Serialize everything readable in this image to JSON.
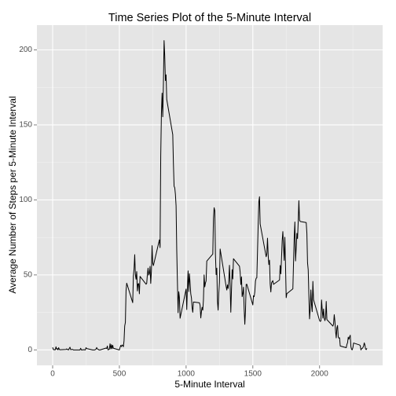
{
  "chart_data": {
    "type": "line",
    "title": "Time Series Plot of the 5-Minute Interval",
    "x_label": "5-Minute Interval",
    "y_label": "Average Number of Steps per 5-Minute Interval",
    "color": "#000000",
    "grid": true,
    "xlim": [
      -117.75,
      2472.75
    ],
    "ylim": [
      -10.3,
      216.5
    ],
    "xticks": [
      0,
      500,
      1000,
      1500,
      2000
    ],
    "yticks": [
      0,
      50,
      100,
      150,
      200
    ],
    "xminor": [
      250,
      750,
      1250,
      1750,
      2250
    ],
    "yminor": [
      25,
      75,
      125,
      175
    ],
    "x": [
      0,
      5,
      10,
      15,
      20,
      25,
      30,
      35,
      40,
      45,
      50,
      55,
      100,
      105,
      110,
      115,
      120,
      125,
      130,
      135,
      140,
      145,
      150,
      155,
      200,
      205,
      210,
      215,
      220,
      225,
      230,
      235,
      240,
      245,
      250,
      255,
      300,
      305,
      310,
      315,
      320,
      325,
      330,
      335,
      340,
      345,
      350,
      355,
      400,
      405,
      410,
      415,
      420,
      425,
      430,
      435,
      440,
      445,
      450,
      455,
      500,
      505,
      510,
      515,
      520,
      525,
      530,
      535,
      540,
      545,
      550,
      555,
      600,
      605,
      610,
      615,
      620,
      625,
      630,
      635,
      640,
      645,
      650,
      655,
      700,
      705,
      710,
      715,
      720,
      725,
      730,
      735,
      740,
      745,
      750,
      755,
      800,
      805,
      810,
      815,
      820,
      825,
      830,
      835,
      840,
      845,
      850,
      855,
      900,
      905,
      910,
      915,
      920,
      925,
      930,
      935,
      940,
      945,
      950,
      955,
      1000,
      1005,
      1010,
      1015,
      1020,
      1025,
      1030,
      1035,
      1040,
      1045,
      1050,
      1055,
      1100,
      1105,
      1110,
      1115,
      1120,
      1125,
      1130,
      1135,
      1140,
      1145,
      1150,
      1155,
      1200,
      1205,
      1210,
      1215,
      1220,
      1225,
      1230,
      1235,
      1240,
      1245,
      1250,
      1255,
      1300,
      1305,
      1310,
      1315,
      1320,
      1325,
      1330,
      1335,
      1340,
      1345,
      1350,
      1355,
      1400,
      1405,
      1410,
      1415,
      1420,
      1425,
      1430,
      1435,
      1440,
      1445,
      1450,
      1455,
      1500,
      1505,
      1510,
      1515,
      1520,
      1525,
      1530,
      1535,
      1540,
      1545,
      1550,
      1555,
      1600,
      1605,
      1610,
      1615,
      1620,
      1625,
      1630,
      1635,
      1640,
      1645,
      1650,
      1655,
      1700,
      1705,
      1710,
      1715,
      1720,
      1725,
      1730,
      1735,
      1740,
      1745,
      1750,
      1755,
      1800,
      1805,
      1810,
      1815,
      1820,
      1825,
      1830,
      1835,
      1840,
      1845,
      1850,
      1855,
      1900,
      1905,
      1910,
      1915,
      1920,
      1925,
      1930,
      1935,
      1940,
      1945,
      1950,
      1955,
      2000,
      2005,
      2010,
      2015,
      2020,
      2025,
      2030,
      2035,
      2040,
      2045,
      2050,
      2055,
      2100,
      2105,
      2110,
      2115,
      2120,
      2125,
      2130,
      2135,
      2140,
      2145,
      2150,
      2155,
      2200,
      2205,
      2210,
      2215,
      2220,
      2225,
      2230,
      2235,
      2240,
      2245,
      2250,
      2255,
      2300,
      2305,
      2310,
      2315,
      2320,
      2325,
      2330,
      2335,
      2340,
      2345,
      2350,
      2355
    ],
    "values": [
      1.7,
      0.3,
      0.1,
      0.2,
      0.1,
      2.1,
      0.5,
      0.9,
      0,
      1.5,
      0.3,
      0.1,
      0.3,
      0.7,
      0.2,
      0.3,
      0,
      1.1,
      1.8,
      0.2,
      0.2,
      0.4,
      0.3,
      0,
      0,
      0,
      1.1,
      0,
      0,
      0.1,
      0,
      0.2,
      0,
      0,
      1.5,
      0.9,
      0,
      0,
      0,
      0,
      0.2,
      0.6,
      1.6,
      0.6,
      0.5,
      0.1,
      0,
      0,
      1.2,
      0.9,
      2.6,
      0,
      0.3,
      0.4,
      4.1,
      0.7,
      3.5,
      0.8,
      3.1,
      1.1,
      0,
      1.6,
      3.0,
      2.2,
      3.3,
      3.0,
      2.1,
      6.1,
      16.0,
      18.3,
      39.5,
      44.5,
      31.5,
      49.3,
      53.8,
      63.5,
      50.0,
      47.1,
      52.2,
      39.3,
      44.0,
      44.2,
      37.4,
      49.0,
      43.8,
      44.4,
      50.5,
      54.5,
      49.9,
      51.0,
      55.7,
      44.3,
      52.3,
      69.5,
      57.8,
      56.2,
      73.4,
      68.2,
      129.4,
      157.5,
      171.2,
      155.4,
      177.3,
      206.2,
      195.9,
      179.6,
      183.4,
      167.0,
      143.5,
      124.0,
      109.1,
      108.1,
      103.7,
      95.97,
      66.2,
      45.2,
      24.8,
      38.8,
      35,
      21.1,
      40.6,
      26.9,
      42.4,
      52.7,
      38.9,
      50.8,
      44.3,
      37.4,
      34.7,
      28.3,
      25.1,
      31.9,
      31.4,
      29.7,
      21.3,
      25.5,
      28.4,
      26.5,
      33.4,
      50.0,
      42.0,
      44.6,
      46.0,
      59.2,
      63.9,
      87.7,
      94.8,
      92.8,
      63.4,
      50.2,
      54.5,
      32.4,
      26.5,
      37.7,
      45.1,
      67.3,
      42.3,
      39.9,
      43.3,
      40.98,
      46.2,
      56.4,
      42.8,
      25.1,
      39.97,
      53.5,
      47.3,
      60.8,
      55.8,
      51.96,
      43.6,
      48.7,
      35.5,
      37.5,
      41.8,
      27.5,
      17.1,
      26.1,
      43.6,
      43.8,
      30.0,
      36.1,
      35.5,
      38.8,
      45.96,
      47.75,
      48.1,
      65.3,
      82.9,
      98.7,
      102.1,
      83.96,
      62.1,
      64.1,
      74.5,
      63.2,
      56.9,
      59.8,
      43.9,
      38.6,
      44.7,
      45.5,
      46.2,
      43.7,
      46.6,
      56.3,
      50.7,
      61.2,
      72.7,
      78.9,
      68.9,
      59.7,
      75.1,
      56.5,
      34.8,
      37.5,
      40.7,
      58.0,
      74.7,
      85.3,
      59.3,
      67.8,
      77.7,
      74.2,
      85.3,
      99.5,
      86.6,
      85.6,
      84.9,
      77.8,
      58.0,
      53.4,
      36.3,
      20.7,
      27.4,
      40.0,
      30.2,
      25.5,
      45.7,
      33.5,
      19.6,
      19.0,
      19.3,
      33.3,
      26.8,
      21.2,
      27.3,
      21.3,
      19.5,
      21.3,
      32.3,
      20.2,
      15.9,
      17.2,
      23.5,
      19.2,
      12.5,
      8.0,
      14.7,
      16.3,
      8.7,
      7.8,
      8.1,
      2.6,
      1.5,
      3.7,
      4.8,
      8.5,
      7.1,
      8.7,
      9.8,
      2.2,
      0.3,
      0.1,
      1.6,
      4.6,
      3.3,
      2.8,
      0,
      0.8,
      1.0,
      1.6,
      2.6,
      4.7,
      3.3,
      0.6,
      0.2,
      1.1
    ]
  }
}
